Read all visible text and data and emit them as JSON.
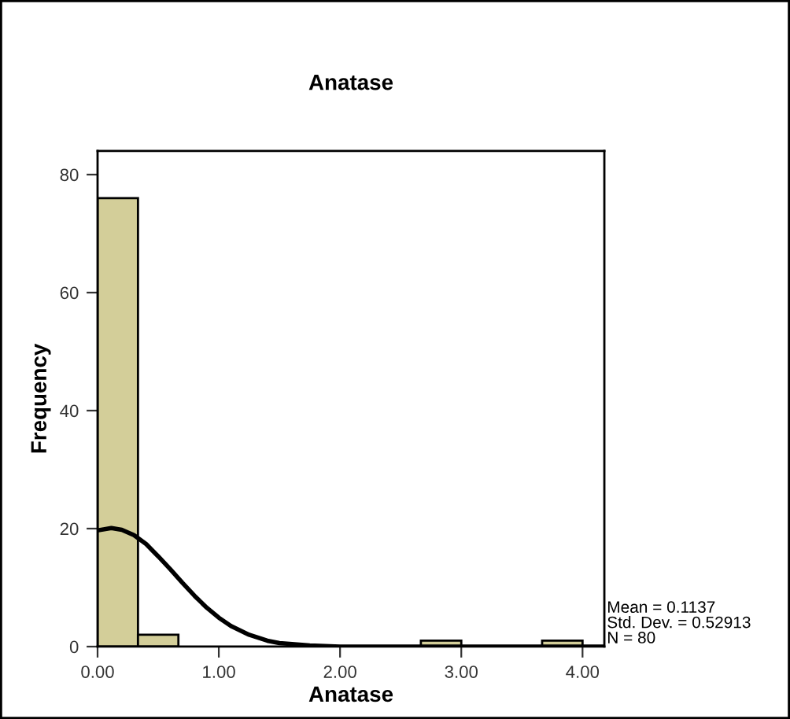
{
  "chart_data": {
    "type": "histogram",
    "title": "Anatase",
    "xlabel": "Anatase",
    "ylabel": "Frequency",
    "bins": [
      0,
      0.3333,
      0.6667,
      1,
      1.3333,
      1.6667,
      2,
      2.3333,
      2.6667,
      3,
      3.3333,
      3.6667,
      4
    ],
    "values": [
      76,
      2,
      0,
      0,
      0,
      0,
      0,
      0,
      1,
      0,
      0,
      1
    ],
    "color": "#d3ce99",
    "series": [
      {
        "type": "line",
        "color": "#000000",
        "x": [
          0,
          0.1137,
          0.2,
          0.3,
          0.4,
          0.5,
          0.6,
          0.7,
          0.8,
          0.9,
          1.0,
          1.1,
          1.25,
          1.4,
          1.5,
          1.75,
          2.0,
          2.5,
          3.0,
          4.0,
          4.18
        ],
        "values": [
          19.7,
          20.1,
          19.8,
          18.9,
          17.4,
          15.3,
          13.1,
          10.8,
          8.6,
          6.6,
          4.9,
          3.5,
          2.0,
          1.0,
          0.6,
          0.2,
          0,
          0,
          0,
          0,
          0
        ]
      }
    ],
    "xlim": [
      0,
      4.18
    ],
    "ylim": [
      0,
      84
    ],
    "xticks": [
      {
        "value": 0,
        "label": "0.00"
      },
      {
        "value": 1,
        "label": "1.00"
      },
      {
        "value": 2,
        "label": "2.00"
      },
      {
        "value": 3,
        "label": "3.00"
      },
      {
        "value": 4,
        "label": "4.00"
      }
    ],
    "yticks": [
      0,
      20,
      40,
      60,
      80
    ],
    "grid": false,
    "legend": false,
    "annotations": [
      "Mean = 0.1137\nStd. Dev. = 0.52913\nN = 80"
    ]
  }
}
